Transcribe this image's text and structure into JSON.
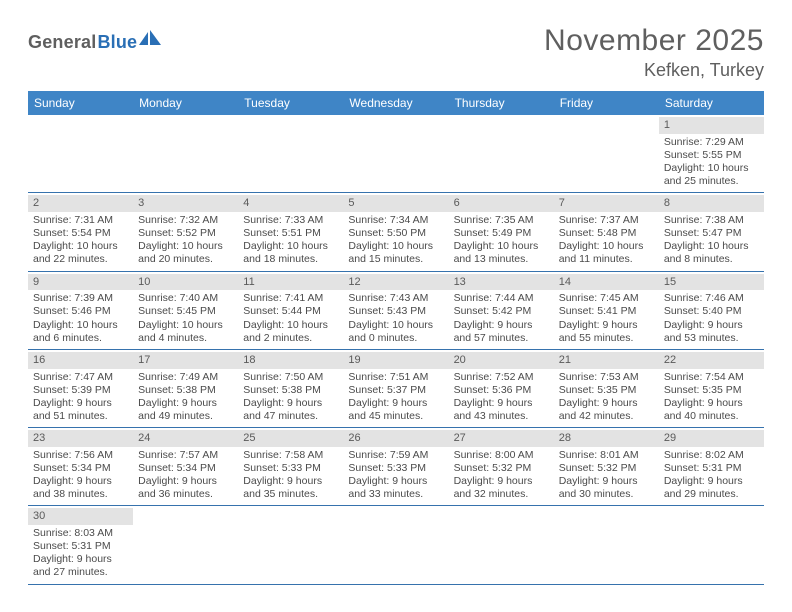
{
  "brand": {
    "part1": "General",
    "part2": "Blue"
  },
  "title": "November 2025",
  "location": "Kefken, Turkey",
  "colors": {
    "header_bg": "#3f85c6",
    "rule": "#3672ad",
    "band": "#e3e3e3",
    "text": "#4b4b4b",
    "title_text": "#5f5f5f"
  },
  "daysOfWeek": [
    "Sunday",
    "Monday",
    "Tuesday",
    "Wednesday",
    "Thursday",
    "Friday",
    "Saturday"
  ],
  "weeks": [
    [
      null,
      null,
      null,
      null,
      null,
      null,
      {
        "n": "1",
        "sr": "Sunrise: 7:29 AM",
        "ss": "Sunset: 5:55 PM",
        "dl": "Daylight: 10 hours and 25 minutes."
      }
    ],
    [
      {
        "n": "2",
        "sr": "Sunrise: 7:31 AM",
        "ss": "Sunset: 5:54 PM",
        "dl": "Daylight: 10 hours and 22 minutes."
      },
      {
        "n": "3",
        "sr": "Sunrise: 7:32 AM",
        "ss": "Sunset: 5:52 PM",
        "dl": "Daylight: 10 hours and 20 minutes."
      },
      {
        "n": "4",
        "sr": "Sunrise: 7:33 AM",
        "ss": "Sunset: 5:51 PM",
        "dl": "Daylight: 10 hours and 18 minutes."
      },
      {
        "n": "5",
        "sr": "Sunrise: 7:34 AM",
        "ss": "Sunset: 5:50 PM",
        "dl": "Daylight: 10 hours and 15 minutes."
      },
      {
        "n": "6",
        "sr": "Sunrise: 7:35 AM",
        "ss": "Sunset: 5:49 PM",
        "dl": "Daylight: 10 hours and 13 minutes."
      },
      {
        "n": "7",
        "sr": "Sunrise: 7:37 AM",
        "ss": "Sunset: 5:48 PM",
        "dl": "Daylight: 10 hours and 11 minutes."
      },
      {
        "n": "8",
        "sr": "Sunrise: 7:38 AM",
        "ss": "Sunset: 5:47 PM",
        "dl": "Daylight: 10 hours and 8 minutes."
      }
    ],
    [
      {
        "n": "9",
        "sr": "Sunrise: 7:39 AM",
        "ss": "Sunset: 5:46 PM",
        "dl": "Daylight: 10 hours and 6 minutes."
      },
      {
        "n": "10",
        "sr": "Sunrise: 7:40 AM",
        "ss": "Sunset: 5:45 PM",
        "dl": "Daylight: 10 hours and 4 minutes."
      },
      {
        "n": "11",
        "sr": "Sunrise: 7:41 AM",
        "ss": "Sunset: 5:44 PM",
        "dl": "Daylight: 10 hours and 2 minutes."
      },
      {
        "n": "12",
        "sr": "Sunrise: 7:43 AM",
        "ss": "Sunset: 5:43 PM",
        "dl": "Daylight: 10 hours and 0 minutes."
      },
      {
        "n": "13",
        "sr": "Sunrise: 7:44 AM",
        "ss": "Sunset: 5:42 PM",
        "dl": "Daylight: 9 hours and 57 minutes."
      },
      {
        "n": "14",
        "sr": "Sunrise: 7:45 AM",
        "ss": "Sunset: 5:41 PM",
        "dl": "Daylight: 9 hours and 55 minutes."
      },
      {
        "n": "15",
        "sr": "Sunrise: 7:46 AM",
        "ss": "Sunset: 5:40 PM",
        "dl": "Daylight: 9 hours and 53 minutes."
      }
    ],
    [
      {
        "n": "16",
        "sr": "Sunrise: 7:47 AM",
        "ss": "Sunset: 5:39 PM",
        "dl": "Daylight: 9 hours and 51 minutes."
      },
      {
        "n": "17",
        "sr": "Sunrise: 7:49 AM",
        "ss": "Sunset: 5:38 PM",
        "dl": "Daylight: 9 hours and 49 minutes."
      },
      {
        "n": "18",
        "sr": "Sunrise: 7:50 AM",
        "ss": "Sunset: 5:38 PM",
        "dl": "Daylight: 9 hours and 47 minutes."
      },
      {
        "n": "19",
        "sr": "Sunrise: 7:51 AM",
        "ss": "Sunset: 5:37 PM",
        "dl": "Daylight: 9 hours and 45 minutes."
      },
      {
        "n": "20",
        "sr": "Sunrise: 7:52 AM",
        "ss": "Sunset: 5:36 PM",
        "dl": "Daylight: 9 hours and 43 minutes."
      },
      {
        "n": "21",
        "sr": "Sunrise: 7:53 AM",
        "ss": "Sunset: 5:35 PM",
        "dl": "Daylight: 9 hours and 42 minutes."
      },
      {
        "n": "22",
        "sr": "Sunrise: 7:54 AM",
        "ss": "Sunset: 5:35 PM",
        "dl": "Daylight: 9 hours and 40 minutes."
      }
    ],
    [
      {
        "n": "23",
        "sr": "Sunrise: 7:56 AM",
        "ss": "Sunset: 5:34 PM",
        "dl": "Daylight: 9 hours and 38 minutes."
      },
      {
        "n": "24",
        "sr": "Sunrise: 7:57 AM",
        "ss": "Sunset: 5:34 PM",
        "dl": "Daylight: 9 hours and 36 minutes."
      },
      {
        "n": "25",
        "sr": "Sunrise: 7:58 AM",
        "ss": "Sunset: 5:33 PM",
        "dl": "Daylight: 9 hours and 35 minutes."
      },
      {
        "n": "26",
        "sr": "Sunrise: 7:59 AM",
        "ss": "Sunset: 5:33 PM",
        "dl": "Daylight: 9 hours and 33 minutes."
      },
      {
        "n": "27",
        "sr": "Sunrise: 8:00 AM",
        "ss": "Sunset: 5:32 PM",
        "dl": "Daylight: 9 hours and 32 minutes."
      },
      {
        "n": "28",
        "sr": "Sunrise: 8:01 AM",
        "ss": "Sunset: 5:32 PM",
        "dl": "Daylight: 9 hours and 30 minutes."
      },
      {
        "n": "29",
        "sr": "Sunrise: 8:02 AM",
        "ss": "Sunset: 5:31 PM",
        "dl": "Daylight: 9 hours and 29 minutes."
      }
    ],
    [
      {
        "n": "30",
        "sr": "Sunrise: 8:03 AM",
        "ss": "Sunset: 5:31 PM",
        "dl": "Daylight: 9 hours and 27 minutes."
      },
      null,
      null,
      null,
      null,
      null,
      null
    ]
  ]
}
